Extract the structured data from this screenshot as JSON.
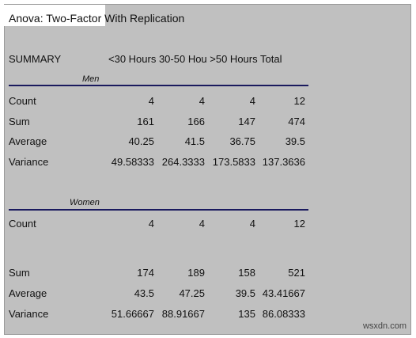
{
  "title": "Anova: Two-Factor With Replication",
  "summary_label": "SUMMARY",
  "column_headers_text": "<30 Hours 30-50 Hou >50 Hours Total",
  "groups": [
    {
      "name": "Men",
      "rows": [
        {
          "label": "Count",
          "values": [
            "4",
            "4",
            "4",
            "12"
          ]
        },
        {
          "label": "Sum",
          "values": [
            "161",
            "166",
            "147",
            "474"
          ]
        },
        {
          "label": "Average",
          "values": [
            "40.25",
            "41.5",
            "36.75",
            "39.5"
          ]
        },
        {
          "label": "Variance",
          "values": [
            "49.58333",
            "264.3333",
            "173.5833",
            "137.3636"
          ]
        }
      ]
    },
    {
      "name": "Women",
      "rows": [
        {
          "label": "Count",
          "values": [
            "4",
            "4",
            "4",
            "12"
          ]
        },
        {
          "label": "Sum",
          "values": [
            "174",
            "189",
            "158",
            "521"
          ]
        },
        {
          "label": "Average",
          "values": [
            "43.5",
            "47.25",
            "39.5",
            "43.41667"
          ]
        },
        {
          "label": "Variance",
          "values": [
            "51.66667",
            "88.91667",
            "135",
            "86.08333"
          ]
        }
      ]
    }
  ],
  "watermark": "wsxdn.com"
}
